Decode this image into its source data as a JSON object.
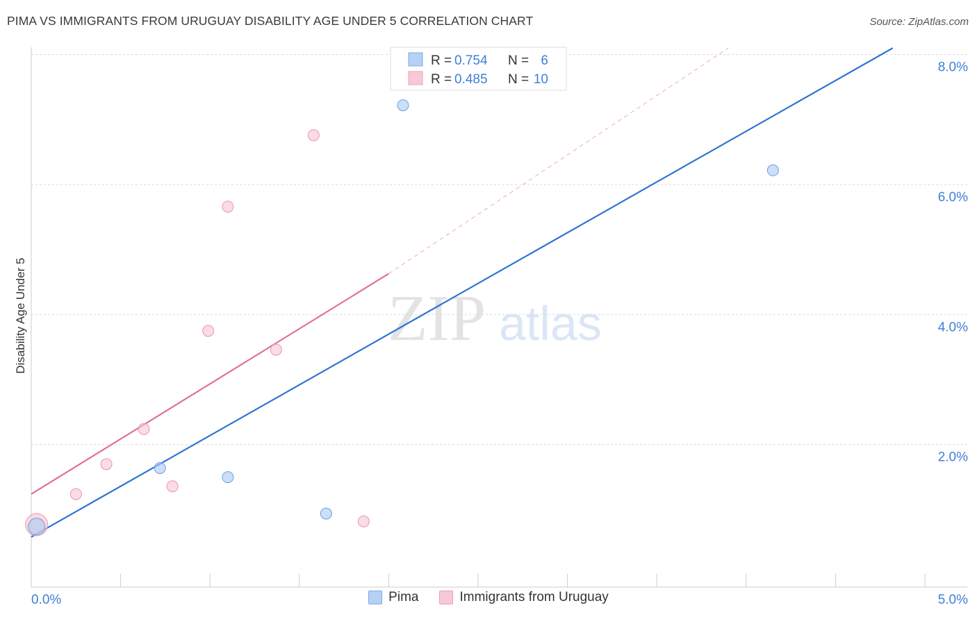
{
  "title": "PIMA VS IMMIGRANTS FROM URUGUAY DISABILITY AGE UNDER 5 CORRELATION CHART",
  "source": "Source: ZipAtlas.com",
  "watermark": {
    "zip": "ZIP",
    "atlas": "atlas"
  },
  "chart_data": {
    "type": "scatter",
    "ylabel": "Disability Age Under 5",
    "xlim": [
      0,
      5
    ],
    "ylim": [
      0,
      8
    ],
    "x_tick_labels": [
      "0.0%",
      "5.0%"
    ],
    "y_ticks": [
      2,
      4,
      6,
      8
    ],
    "y_tick_labels": [
      "2.0%",
      "4.0%",
      "6.0%",
      "8.0%"
    ],
    "series": [
      {
        "name": "Pima",
        "color": "#a9c9f2",
        "stroke": "#6d9fe0",
        "line_color": "#2d74d3",
        "r": "0.754",
        "n": "6",
        "points": [
          {
            "x": 0.03,
            "y": 0.92,
            "big": true
          },
          {
            "x": 0.72,
            "y": 1.82
          },
          {
            "x": 1.1,
            "y": 1.68
          },
          {
            "x": 1.65,
            "y": 1.12
          },
          {
            "x": 2.08,
            "y": 7.4
          },
          {
            "x": 4.15,
            "y": 6.4
          }
        ],
        "trend": {
          "x0": 0.0,
          "y0": 0.76,
          "x1": 4.82,
          "y1": 8.28
        }
      },
      {
        "name": "Immigrants from Uruguay",
        "color": "#f7c4d3",
        "stroke": "#ec93ad",
        "line_color": "#e0709a",
        "r": "0.485",
        "n": "10",
        "points": [
          {
            "x": 0.03,
            "y": 0.95,
            "big": true
          },
          {
            "x": 0.25,
            "y": 1.42
          },
          {
            "x": 0.42,
            "y": 1.88
          },
          {
            "x": 0.63,
            "y": 2.42
          },
          {
            "x": 0.79,
            "y": 1.54
          },
          {
            "x": 0.99,
            "y": 3.93
          },
          {
            "x": 1.1,
            "y": 5.84
          },
          {
            "x": 1.37,
            "y": 3.64
          },
          {
            "x": 1.58,
            "y": 6.94
          },
          {
            "x": 1.86,
            "y": 1.0
          }
        ],
        "trend": {
          "x0": 0.0,
          "y0": 1.42,
          "x1": 2.0,
          "y1": 4.81
        },
        "trend_dashed": {
          "x0": 2.0,
          "y0": 4.81,
          "x1": 3.9,
          "y1": 8.28
        }
      }
    ]
  }
}
